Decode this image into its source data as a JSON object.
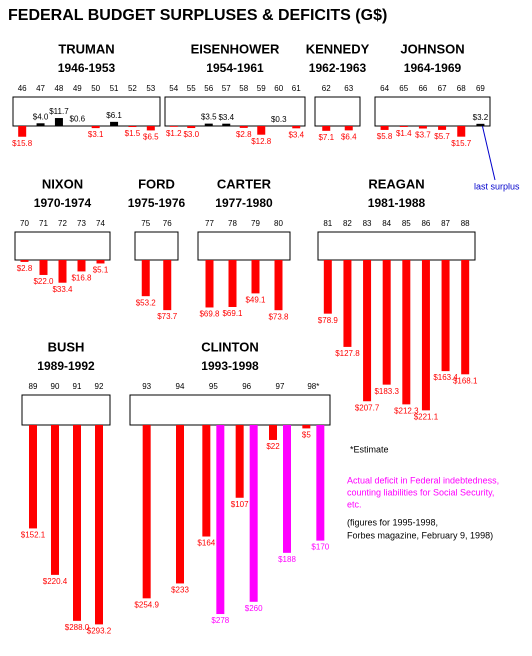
{
  "title": "FEDERAL BUDGET SURPLUSES & DEFICITS (G$)",
  "notes": {
    "estimate": "*Estimate",
    "actual": [
      "Actual deficit in Federal indebtedness,",
      "counting liabilities for Social Security,",
      "etc."
    ],
    "actual_color": "#ff00ff",
    "source": [
      "(figures for 1995-1998,",
      "Forbes magazine, February 9, 1998)"
    ]
  },
  "chart_data": [
    {
      "type": "bar",
      "title": "TRUMAN",
      "subtitle": "1946-1953",
      "positive_color": "#000000",
      "categories": [
        "46",
        "47",
        "48",
        "49",
        "50",
        "51",
        "52",
        "53"
      ],
      "series": [
        {
          "color": "#ff0000",
          "values": [
            -15.8,
            4.0,
            11.7,
            0.6,
            -3.1,
            6.1,
            -1.5,
            -6.5
          ],
          "value_labels": [
            "$15.8",
            "$4.0",
            "$11.7",
            "$0.6",
            "$3.1",
            "$6.1",
            "$1.5",
            "$6.5"
          ]
        }
      ]
    },
    {
      "type": "bar",
      "title": "EISENHOWER",
      "subtitle": "1954-1961",
      "positive_color": "#000000",
      "categories": [
        "54",
        "55",
        "56",
        "57",
        "58",
        "59",
        "60",
        "61"
      ],
      "series": [
        {
          "color": "#ff0000",
          "values": [
            -1.2,
            -3.0,
            3.5,
            3.4,
            -2.8,
            -12.8,
            0.3,
            -3.4
          ],
          "value_labels": [
            "$1.2",
            "$3.0",
            "$3.5",
            "$3.4",
            "$2.8",
            "$12.8",
            "$0.3",
            "$3.4"
          ]
        }
      ]
    },
    {
      "type": "bar",
      "title": "KENNEDY",
      "subtitle": "1962-1963",
      "positive_color": "#000000",
      "categories": [
        "62",
        "63"
      ],
      "series": [
        {
          "color": "#ff0000",
          "values": [
            -7.1,
            -6.4
          ],
          "value_labels": [
            "$7.1",
            "$6.4"
          ]
        }
      ]
    },
    {
      "type": "bar",
      "title": "JOHNSON",
      "subtitle": "1964-1969",
      "positive_color": "#000000",
      "annotation": "last surplus",
      "annotation_color": "#0000cc",
      "categories": [
        "64",
        "65",
        "66",
        "67",
        "68",
        "69"
      ],
      "series": [
        {
          "color": "#ff0000",
          "values": [
            -5.8,
            -1.4,
            -3.7,
            -5.7,
            -15.7,
            3.2
          ],
          "value_labels": [
            "$5.8",
            "$1.4",
            "$3.7",
            "$5.7",
            "$15.7",
            "$3.2"
          ]
        }
      ]
    },
    {
      "type": "bar",
      "title": "NIXON",
      "subtitle": "1970-1974",
      "positive_color": "#000000",
      "categories": [
        "70",
        "71",
        "72",
        "73",
        "74"
      ],
      "series": [
        {
          "color": "#ff0000",
          "values": [
            -2.8,
            -22.0,
            -33.4,
            -16.8,
            -5.1
          ],
          "value_labels": [
            "$2.8",
            "$22.0",
            "$33.4",
            "$16.8",
            "$5.1"
          ]
        }
      ]
    },
    {
      "type": "bar",
      "title": "FORD",
      "subtitle": "1975-1976",
      "positive_color": "#000000",
      "categories": [
        "75",
        "76"
      ],
      "series": [
        {
          "color": "#ff0000",
          "values": [
            -53.2,
            -73.7
          ],
          "value_labels": [
            "$53.2",
            "$73.7"
          ]
        }
      ]
    },
    {
      "type": "bar",
      "title": "CARTER",
      "subtitle": "1977-1980",
      "positive_color": "#000000",
      "categories": [
        "77",
        "78",
        "79",
        "80"
      ],
      "series": [
        {
          "color": "#ff0000",
          "values": [
            -69.8,
            -69.1,
            -49.1,
            -73.8
          ],
          "value_labels": [
            "$69.8",
            "$69.1",
            "$49.1",
            "$73.8"
          ]
        }
      ]
    },
    {
      "type": "bar",
      "title": "REAGAN",
      "subtitle": "1981-1988",
      "positive_color": "#000000",
      "categories": [
        "81",
        "82",
        "83",
        "84",
        "85",
        "86",
        "87",
        "88"
      ],
      "series": [
        {
          "color": "#ff0000",
          "values": [
            -78.9,
            -127.8,
            -207.7,
            -183.3,
            -212.3,
            -221.1,
            -163.4,
            -168.1
          ],
          "value_labels": [
            "$78.9",
            "$127.8",
            "$207.7",
            "$183.3",
            "$212.3",
            "$221.1",
            "$163.4",
            "$168.1"
          ]
        }
      ]
    },
    {
      "type": "bar",
      "title": "BUSH",
      "subtitle": "1989-1992",
      "positive_color": "#000000",
      "categories": [
        "89",
        "90",
        "91",
        "92"
      ],
      "series": [
        {
          "color": "#ff0000",
          "values": [
            -152.1,
            -220.4,
            -288.0,
            -293.2
          ],
          "value_labels": [
            "$152.1",
            "$220.4",
            "$288.0",
            "$293.2"
          ]
        }
      ]
    },
    {
      "type": "bar",
      "title": "CLINTON",
      "subtitle": "1993-1998",
      "positive_color": "#000000",
      "categories": [
        "93",
        "94",
        "95",
        "96",
        "97",
        "98*"
      ],
      "series": [
        {
          "color": "#ff0000",
          "values": [
            -254.9,
            -233,
            -164,
            -107,
            -22,
            -5
          ],
          "value_labels": [
            "$254.9",
            "$233",
            "$164",
            "$107",
            "$22",
            "$5"
          ]
        },
        {
          "color": "#ff00ff",
          "values": [
            null,
            null,
            -278,
            -260,
            -188,
            -170
          ],
          "value_labels": [
            null,
            null,
            "$278",
            "$260",
            "$188",
            "$170"
          ]
        }
      ]
    }
  ]
}
